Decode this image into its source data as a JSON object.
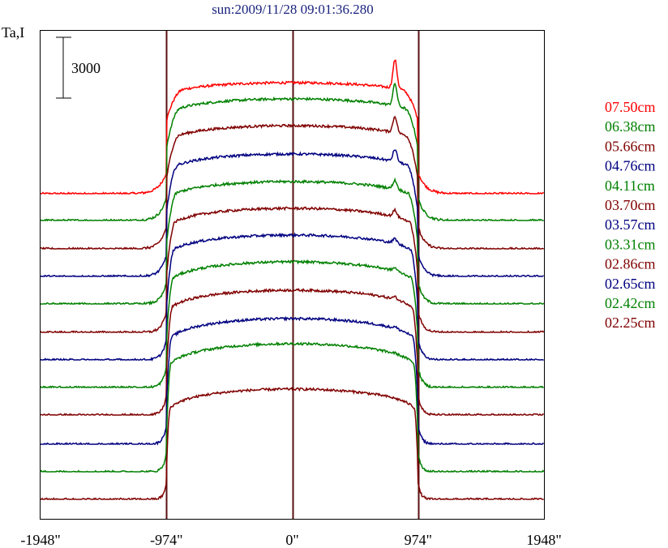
{
  "chart_data": {
    "type": "line",
    "title": "sun:2009/11/28 09:01:36.280",
    "ylabel": "Ta,I",
    "scale_bar_label": "3000",
    "scale_bar_value": 3000,
    "x_ticks": [
      "-1948\"",
      "-974\"",
      "0\"",
      "974\"",
      "1948\""
    ],
    "x_tick_values": [
      -1948,
      -974,
      0,
      974,
      1948
    ],
    "xlim": [
      -1948,
      1948
    ],
    "vertical_lines": [
      -974,
      0,
      974
    ],
    "grid": false,
    "legend_position": "right",
    "series": [
      {
        "name": "07.50cm",
        "legend_label": "07.50cm",
        "color": "#ff0000",
        "baseline": 239,
        "plateau": 137,
        "limb_darkening": 0.18,
        "limb_edge_width": 130,
        "limb_drop": 0.24,
        "active_peak": 35
      },
      {
        "name": "06.38cm",
        "legend_label": "06.38cm",
        "color": "#008000",
        "baseline": 272,
        "plateau": 150,
        "limb_darkening": 0.2,
        "limb_edge_width": 110,
        "limb_drop": 0.3,
        "active_peak": 27
      },
      {
        "name": "05.66cm",
        "legend_label": "05.66cm",
        "color": "#800000",
        "baseline": 307,
        "plateau": 152,
        "limb_darkening": 0.2,
        "limb_edge_width": 100,
        "limb_drop": 0.34,
        "active_peak": 20
      },
      {
        "name": "04.76cm",
        "legend_label": "04.76cm",
        "color": "#000080",
        "baseline": 341,
        "plateau": 151,
        "limb_darkening": 0.22,
        "limb_edge_width": 90,
        "limb_drop": 0.38,
        "active_peak": 15
      },
      {
        "name": "04.11cm",
        "legend_label": "04.11cm",
        "color": "#008000",
        "baseline": 375,
        "plateau": 151,
        "limb_darkening": 0.22,
        "limb_edge_width": 80,
        "limb_drop": 0.42,
        "active_peak": 11
      },
      {
        "name": "03.70cm",
        "legend_label": "03.70cm",
        "color": "#800000",
        "baseline": 410,
        "plateau": 153,
        "limb_darkening": 0.24,
        "limb_edge_width": 70,
        "limb_drop": 0.46,
        "active_peak": 8
      },
      {
        "name": "03.57cm",
        "legend_label": "03.57cm",
        "color": "#000080",
        "baseline": 444,
        "plateau": 154,
        "limb_darkening": 0.24,
        "limb_edge_width": 62,
        "limb_drop": 0.5,
        "active_peak": 6
      },
      {
        "name": "03.31cm",
        "legend_label": "03.31cm",
        "color": "#008000",
        "baseline": 478,
        "plateau": 155,
        "limb_darkening": 0.26,
        "limb_edge_width": 55,
        "limb_drop": 0.54,
        "active_peak": 4
      },
      {
        "name": "02.86cm",
        "legend_label": "02.86cm",
        "color": "#800000",
        "baseline": 512,
        "plateau": 154,
        "limb_darkening": 0.26,
        "limb_edge_width": 48,
        "limb_drop": 0.58,
        "active_peak": 3
      },
      {
        "name": "02.65cm",
        "legend_label": "02.65cm",
        "color": "#000080",
        "baseline": 548,
        "plateau": 155,
        "limb_darkening": 0.28,
        "limb_edge_width": 42,
        "limb_drop": 0.62,
        "active_peak": 2
      },
      {
        "name": "02.42cm",
        "legend_label": "02.42cm",
        "color": "#008000",
        "baseline": 582,
        "plateau": 158,
        "limb_darkening": 0.28,
        "limb_edge_width": 36,
        "limb_drop": 0.66,
        "active_peak": 1
      },
      {
        "name": "02.25cm",
        "legend_label": "02.25cm",
        "color": "#800000",
        "baseline": 616,
        "plateau": 136,
        "limb_darkening": 0.3,
        "limb_edge_width": 30,
        "limb_drop": 0.7,
        "active_peak": 0
      }
    ],
    "notes": "Stacked solar scan profiles; baseline and plateau are vertical offsets in plot units (arbitrary antenna-temperature scale, 3000 per scale bar)."
  }
}
